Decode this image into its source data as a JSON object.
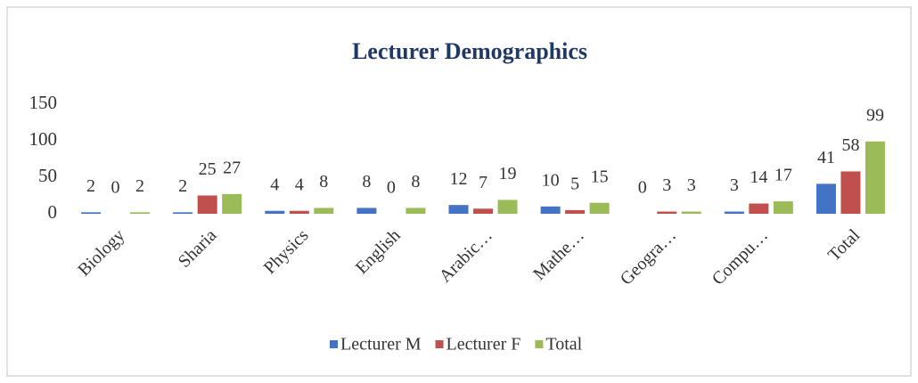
{
  "chart_data": {
    "type": "bar",
    "title": "Lecturer Demographics",
    "categories": [
      "Biology",
      "Sharia",
      "Physics",
      "English",
      "Arabic…",
      "Mathe…",
      "Geogra…",
      "Compu…",
      "Total"
    ],
    "series": [
      {
        "name": "Lecturer M",
        "color": "#4472c4",
        "values": [
          2,
          2,
          4,
          8,
          12,
          10,
          0,
          3,
          41
        ]
      },
      {
        "name": "Lecturer F",
        "color": "#c0504d",
        "values": [
          0,
          25,
          4,
          0,
          7,
          5,
          3,
          14,
          58
        ]
      },
      {
        "name": "Total",
        "color": "#9bbb59",
        "values": [
          2,
          27,
          8,
          8,
          19,
          15,
          3,
          17,
          99
        ]
      }
    ],
    "ylim": [
      0,
      150
    ],
    "yticks": [
      0,
      50,
      100,
      150
    ],
    "grid": false,
    "legend": "bottom"
  }
}
